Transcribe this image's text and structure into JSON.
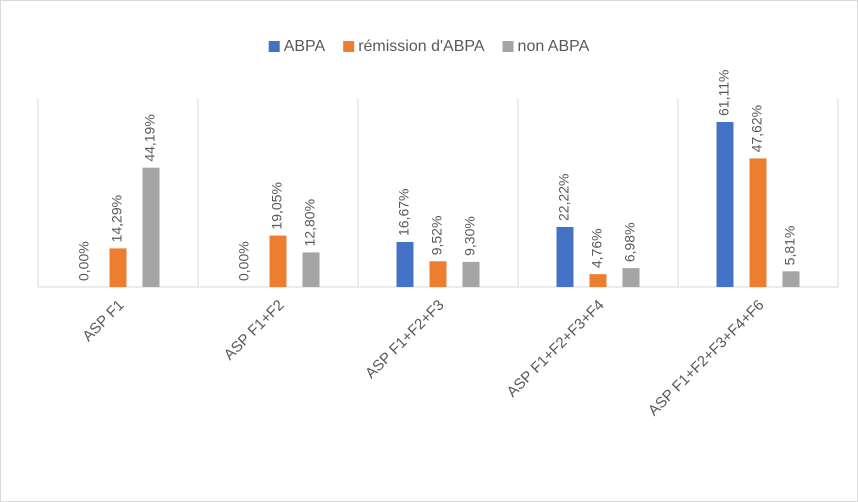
{
  "chart_data": {
    "type": "bar",
    "categories": [
      "ASP F1",
      "ASP F1+F2",
      "ASP F1+F2+F3",
      "ASP F1+F2+F3+F4",
      "ASP F1+F2+F3+F4+F6"
    ],
    "series": [
      {
        "name": "ABPA",
        "color": "#4472c4",
        "values": [
          0,
          0,
          16.67,
          22.22,
          61.11
        ],
        "value_labels": [
          "0,00%",
          "0,00%",
          "16,67%",
          "22,22%",
          "61,11%"
        ]
      },
      {
        "name": "rémission d'ABPA",
        "color": "#ed7d31",
        "values": [
          14.29,
          19.05,
          9.52,
          4.76,
          47.62
        ],
        "value_labels": [
          "14,29%",
          "19,05%",
          "9,52%",
          "4,76%",
          "47,62%"
        ]
      },
      {
        "name": "non ABPA",
        "color": "#a5a5a5",
        "values": [
          44.19,
          12.8,
          9.3,
          6.98,
          5.81
        ],
        "value_labels": [
          "44,19%",
          "12,80%",
          "9,30%",
          "6,98%",
          "5,81%"
        ]
      }
    ],
    "ylim": [
      0,
      70
    ],
    "legend": "top"
  }
}
